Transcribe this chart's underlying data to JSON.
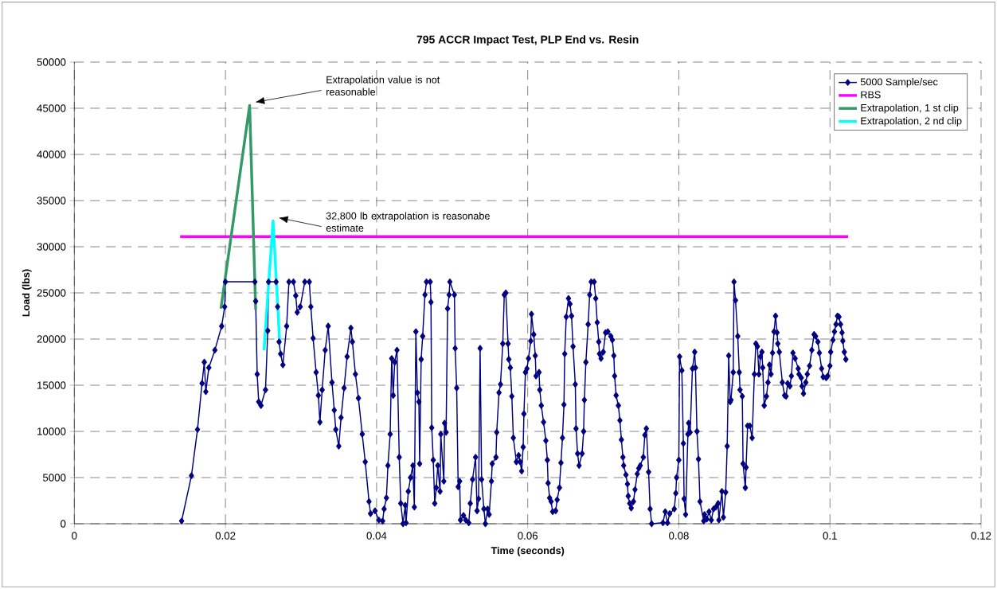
{
  "chart_data": {
    "type": "line",
    "title": "795 ACCR Impact Test, PLP End vs. Resin",
    "xlabel": "Time (seconds)",
    "ylabel": "Load (lbs)",
    "xlim": [
      0,
      0.12
    ],
    "xticks": [
      0,
      0.02,
      0.04,
      0.06,
      0.08,
      0.1,
      0.12
    ],
    "ylim": [
      0,
      50000
    ],
    "yticks": [
      0,
      5000,
      10000,
      15000,
      20000,
      25000,
      30000,
      35000,
      40000,
      45000,
      50000
    ],
    "grid": true,
    "legend": "top right",
    "series": [
      {
        "name": "5000 Sample/sec",
        "color": "#000080",
        "marker": "diamond",
        "x": [
          0.0142,
          0.0155,
          0.0163,
          0.0169,
          0.0172,
          0.0174,
          0.0178,
          0.0186,
          0.0195,
          0.0199,
          0.02,
          0.0239,
          0.024,
          0.0242,
          0.0244,
          0.0247,
          0.0253,
          0.0256,
          0.0257,
          0.0267,
          0.0269,
          0.0271,
          0.0273,
          0.0276,
          0.0281,
          0.0284,
          0.029,
          0.0293,
          0.0295,
          0.0299,
          0.0305,
          0.0311,
          0.0313,
          0.0316,
          0.032,
          0.0323,
          0.0325,
          0.0328,
          0.0332,
          0.0336,
          0.0341,
          0.0344,
          0.0346,
          0.035,
          0.0353,
          0.0357,
          0.0361,
          0.0366,
          0.0368,
          0.0372,
          0.0376,
          0.0381,
          0.0385,
          0.039,
          0.0392,
          0.0398,
          0.0403,
          0.0408,
          0.041,
          0.0413,
          0.0415,
          0.0418,
          0.042,
          0.0422,
          0.0424,
          0.0427,
          0.043,
          0.0432,
          0.0435,
          0.0438,
          0.0439,
          0.0442,
          0.0445,
          0.0448,
          0.045,
          0.0452,
          0.0454,
          0.0456,
          0.0457,
          0.0459,
          0.0461,
          0.0464,
          0.0466,
          0.0471,
          0.0472,
          0.0473,
          0.0475,
          0.0477,
          0.0479,
          0.0481,
          0.0484,
          0.0485,
          0.0489,
          0.049,
          0.0492,
          0.0494,
          0.0496,
          0.0497,
          0.0503,
          0.0504,
          0.0506,
          0.0508,
          0.051,
          0.0511,
          0.0515,
          0.0518,
          0.0522,
          0.0524,
          0.0527,
          0.0531,
          0.0533,
          0.0535,
          0.0537,
          0.0539,
          0.0542,
          0.0544,
          0.0547,
          0.0549,
          0.0552,
          0.0553,
          0.0558,
          0.0559,
          0.0562,
          0.0564,
          0.0567,
          0.0569,
          0.0571,
          0.0574,
          0.0575,
          0.0577,
          0.0579,
          0.0581,
          0.0585,
          0.0588,
          0.059,
          0.0592,
          0.0594,
          0.0595,
          0.0597,
          0.0599,
          0.0601,
          0.0604,
          0.0605,
          0.0608,
          0.061,
          0.0611,
          0.0615,
          0.0616,
          0.0618,
          0.0621,
          0.0624,
          0.0626,
          0.0627,
          0.0629,
          0.0631,
          0.0633,
          0.0637,
          0.0639,
          0.0642,
          0.0644,
          0.0646,
          0.0648,
          0.0649,
          0.0651,
          0.0654,
          0.0656,
          0.0658,
          0.066,
          0.0663,
          0.0664,
          0.0666,
          0.0668,
          0.0672,
          0.0674,
          0.0675,
          0.0677,
          0.068,
          0.0682,
          0.0684,
          0.0688,
          0.069,
          0.0692,
          0.0694,
          0.0695,
          0.0697,
          0.07,
          0.0703,
          0.0706,
          0.071,
          0.0712,
          0.0714,
          0.0715,
          0.0717,
          0.072,
          0.0722,
          0.0724,
          0.0726,
          0.0727,
          0.073,
          0.0732,
          0.0733,
          0.0735,
          0.0737,
          0.074,
          0.0742,
          0.0745,
          0.0747,
          0.0749,
          0.0753,
          0.0755,
          0.0757,
          0.076,
          0.0762,
          0.0764,
          0.0779,
          0.0782,
          0.0785,
          0.0788,
          0.0794,
          0.0796,
          0.0797,
          0.08,
          0.0801,
          0.0804,
          0.0806,
          0.0807,
          0.0809,
          0.0812,
          0.0813,
          0.0815,
          0.0818,
          0.0821,
          0.0822,
          0.0824,
          0.0826,
          0.0828,
          0.0833,
          0.0834,
          0.0837,
          0.084,
          0.0843,
          0.0846,
          0.0849,
          0.0852,
          0.0853,
          0.0857,
          0.0859,
          0.0862,
          0.0864,
          0.0866,
          0.0868,
          0.0869,
          0.0872,
          0.0873,
          0.0875,
          0.0878,
          0.088,
          0.0881,
          0.0884,
          0.0885,
          0.0888,
          0.0889,
          0.0891,
          0.0894,
          0.0897,
          0.09,
          0.0902,
          0.0904,
          0.0906,
          0.0908,
          0.091,
          0.0911,
          0.0913,
          0.0916,
          0.0918,
          0.092,
          0.0922,
          0.0924,
          0.0926,
          0.0928,
          0.093,
          0.0931,
          0.0933,
          0.0937,
          0.094,
          0.0942,
          0.0944,
          0.0947,
          0.0949,
          0.0951,
          0.0954,
          0.0958,
          0.0959,
          0.0962,
          0.0963,
          0.0965,
          0.0968,
          0.097,
          0.0973,
          0.0976,
          0.0979,
          0.0981,
          0.0984,
          0.0986,
          0.0989,
          0.0991,
          0.0995,
          0.0997,
          0.1,
          0.1001,
          0.1004,
          0.1006,
          0.1008,
          0.101,
          0.1012,
          0.1014,
          0.1016,
          0.1017,
          0.1019,
          0.1021
        ],
        "values": [
          300,
          5200,
          10200,
          15200,
          17500,
          14300,
          16900,
          18800,
          21400,
          23500,
          26200,
          26200,
          24100,
          16200,
          13200,
          12800,
          14500,
          20900,
          26200,
          26200,
          23500,
          19700,
          18400,
          17200,
          21400,
          26200,
          26200,
          24700,
          22900,
          23500,
          26200,
          26200,
          23500,
          20100,
          16400,
          13900,
          11000,
          14500,
          18800,
          21400,
          15300,
          12300,
          10200,
          8400,
          11500,
          14700,
          18100,
          21200,
          19700,
          16200,
          13600,
          9700,
          6700,
          2400,
          1100,
          1400,
          400,
          300,
          1600,
          2800,
          6300,
          9700,
          17900,
          13900,
          17500,
          18800,
          7200,
          2200,
          0,
          2000,
          100,
          3500,
          5000,
          6300,
          1800,
          20800,
          14200,
          13200,
          6500,
          17800,
          20300,
          24800,
          26200,
          26200,
          24000,
          10400,
          6900,
          2200,
          3900,
          6300,
          3500,
          9700,
          4600,
          10900,
          9900,
          23300,
          24800,
          26200,
          24800,
          19000,
          14700,
          4000,
          4600,
          400,
          900,
          400,
          100,
          2200,
          4800,
          7200,
          1400,
          2700,
          19000,
          4800,
          1600,
          0,
          1600,
          1000,
          4600,
          6500,
          7200,
          9900,
          14200,
          15100,
          19500,
          24800,
          25000,
          19500,
          17800,
          16900,
          13800,
          9300,
          6700,
          7400,
          6700,
          5700,
          8300,
          11900,
          16400,
          16800,
          17900,
          19800,
          22700,
          20500,
          18200,
          16000,
          16400,
          14500,
          12800,
          11000,
          9000,
          6900,
          4400,
          2800,
          2400,
          1300,
          1400,
          2600,
          3900,
          6600,
          9300,
          12900,
          18400,
          22400,
          24400,
          23800,
          22500,
          19200,
          15100,
          10300,
          7600,
          6300,
          7600,
          10000,
          13400,
          17500,
          21600,
          24800,
          26200,
          26200,
          24400,
          21800,
          19700,
          18400,
          17900,
          18600,
          20700,
          20800,
          20300,
          19900,
          18200,
          16000,
          13900,
          12800,
          11200,
          9100,
          7200,
          6300,
          5300,
          4300,
          3000,
          2200,
          1700,
          2400,
          3700,
          5400,
          6000,
          6300,
          7200,
          9600,
          10300,
          5600,
          1600,
          0,
          100,
          1300,
          100,
          1100,
          1600,
          3300,
          5000,
          6900,
          18100,
          16600,
          8700,
          2700,
          1000,
          9700,
          10900,
          9900,
          16800,
          18600,
          16900,
          10000,
          7000,
          2400,
          300,
          1000,
          500,
          1300,
          400,
          1600,
          1800,
          2200,
          400,
          3500,
          700,
          3400,
          8400,
          18200,
          13200,
          13400,
          16400,
          26200,
          24200,
          20300,
          16400,
          14500,
          13800,
          6500,
          3900,
          6100,
          10600,
          10600,
          9300,
          16200,
          19500,
          19200,
          16200,
          18100,
          18600,
          16900,
          12800,
          13800,
          15300,
          17200,
          16200,
          18500,
          20800,
          22500,
          20700,
          19500,
          18600,
          15300,
          13900,
          13800,
          15200,
          14900,
          16000,
          18500,
          17900,
          16800,
          16200,
          15800,
          14900,
          14100,
          15300,
          16200,
          17100,
          18800,
          20500,
          20300,
          19700,
          18500,
          16800,
          15900,
          15800,
          16000,
          17100,
          18600,
          19900,
          20800,
          21600,
          22500,
          22400,
          21600,
          20700,
          19800,
          18600,
          17800
        ]
      },
      {
        "name": "RBS",
        "color": "#ff00ff",
        "marker": "none",
        "x": [
          0.014,
          0.1024
        ],
        "values": [
          31100,
          31100
        ]
      },
      {
        "name": "Extrapolation, 1 st clip",
        "color": "#339966",
        "marker": "none",
        "x": [
          0.0194,
          0.0232,
          0.024
        ],
        "values": [
          23300,
          45300,
          23200
        ]
      },
      {
        "name": "Extrapolation, 2 nd clip",
        "color": "#00ffff",
        "marker": "none",
        "x": [
          0.0251,
          0.0263,
          0.0272
        ],
        "values": [
          18800,
          32800,
          19400
        ]
      }
    ],
    "annotations": [
      "Extrapolation value is not reasonable",
      "32,800 lb extrapolation is reasonabe estimate"
    ]
  }
}
